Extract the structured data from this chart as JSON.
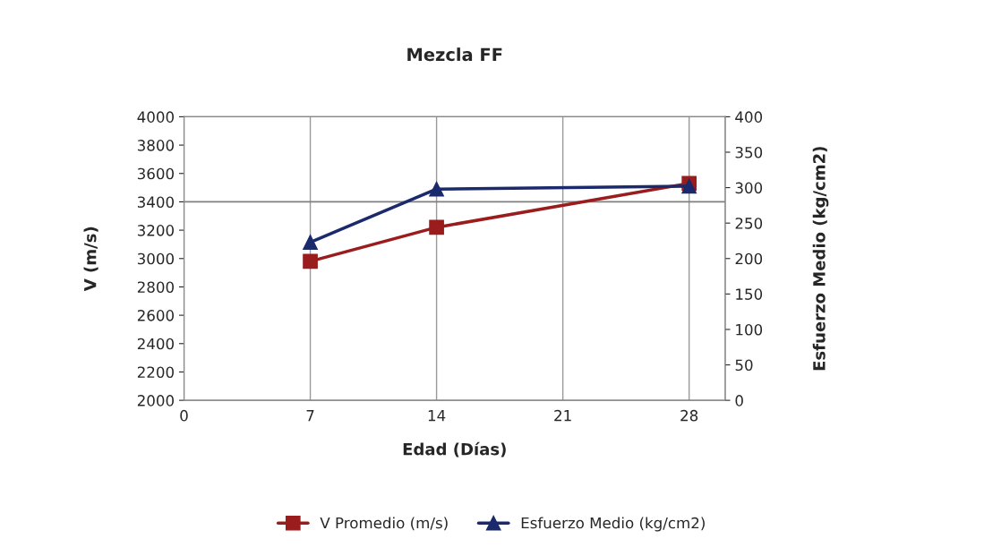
{
  "chart_data": {
    "type": "line",
    "title": "Mezcla FF",
    "xlabel": "Edad (Días)",
    "ylabel": "V (m/s)",
    "y2label": "Esfuerzo Medio (kg/cm2)",
    "x": [
      7,
      14,
      28
    ],
    "series": [
      {
        "name": "V Promedio (m/s)",
        "color": "#9b1c1c",
        "marker": "square",
        "values": [
          2980,
          3220,
          3530
        ]
      },
      {
        "name": "Esfuerzo Medio (kg/cm2)",
        "color": "#1a2a6c",
        "marker": "triangle",
        "axis": "y2",
        "values": [
          223,
          298,
          302
        ]
      }
    ],
    "xlim": [
      0,
      30
    ],
    "xticks": [
      0,
      7,
      14,
      21,
      28
    ],
    "ylim": [
      2000,
      4000
    ],
    "yticks": [
      2000,
      2200,
      2400,
      2600,
      2800,
      3000,
      3200,
      3400,
      3600,
      3800,
      4000
    ],
    "y2lim": [
      0,
      400
    ],
    "y2ticks": [
      0,
      50,
      100,
      150,
      200,
      250,
      300,
      350,
      400
    ],
    "ref_lines": [
      {
        "axis": "y",
        "value": 3400,
        "color": "#808080"
      }
    ],
    "grid": "x",
    "legend": "bottom"
  }
}
